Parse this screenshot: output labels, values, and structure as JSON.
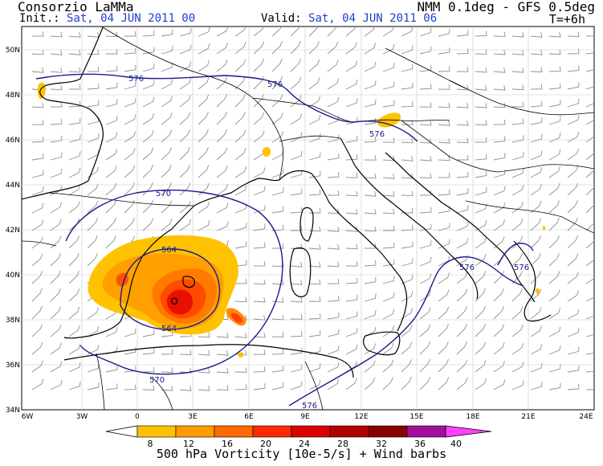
{
  "header": {
    "title": "Consorzio LaMMa",
    "model": "NMM 0.1deg - GFS 0.5deg",
    "init_label": "Init.:",
    "init_value": "Sat, 04 JUN 2011  00",
    "valid_label": "Valid:",
    "valid_value": "Sat, 04 JUN 2011  06",
    "lead_time": "T=+6h"
  },
  "map": {
    "lon_ticks": [
      "6W",
      "3W",
      "0",
      "3E",
      "6E",
      "9E",
      "12E",
      "15E",
      "18E",
      "21E",
      "24E"
    ],
    "lat_ticks": [
      "50N",
      "48N",
      "46N",
      "44N",
      "42N",
      "40N",
      "38N",
      "36N",
      "34N"
    ],
    "height_contour_labels": [
      {
        "label": "576",
        "contour": "north"
      },
      {
        "label": "576",
        "contour": "north-east"
      },
      {
        "label": "576",
        "contour": "alps"
      },
      {
        "label": "570",
        "contour": "ring-north"
      },
      {
        "label": "570",
        "contour": "ring-south"
      },
      {
        "label": "564",
        "contour": "low-north"
      },
      {
        "label": "564",
        "contour": "low-south"
      },
      {
        "label": "576",
        "contour": "south-east"
      },
      {
        "label": "576",
        "contour": "adriatic"
      },
      {
        "label": "576",
        "contour": "south"
      }
    ],
    "colors": {
      "land_outline": "#000000",
      "contour": "#1a1a8c",
      "grid": "#bdbdbd",
      "barbs": "#8c8c8c"
    }
  },
  "colorbar": {
    "levels": [
      "8",
      "12",
      "16",
      "20",
      "24",
      "28",
      "32",
      "36",
      "40"
    ],
    "colors": [
      "#ffffff",
      "#ffc200",
      "#ff9a00",
      "#ff6a00",
      "#ff2a00",
      "#dd0000",
      "#b00000",
      "#8a0000",
      "#a0109a",
      "#ff40ff"
    ]
  },
  "caption": "500 hPa Vorticity [10e-5/s] + Wind barbs"
}
